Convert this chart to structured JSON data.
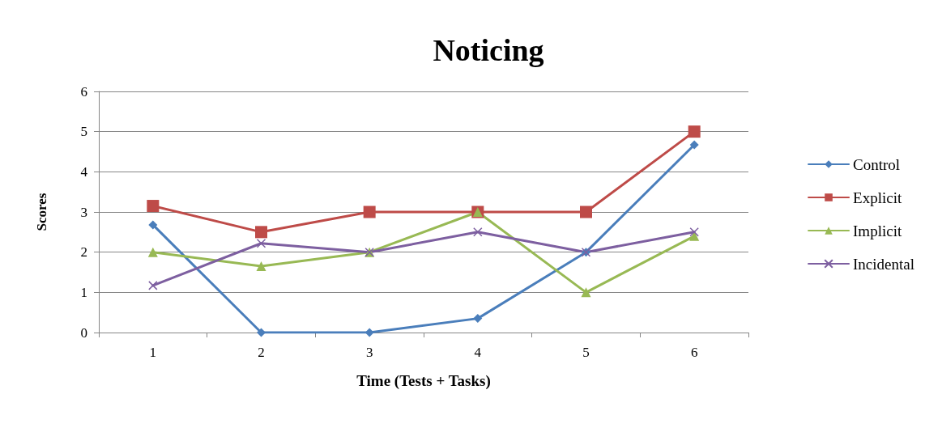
{
  "chart_data": {
    "type": "line",
    "title": "Noticing",
    "xlabel": "Time (Tests + Tasks)",
    "ylabel": "Scores",
    "categories": [
      "1",
      "2",
      "3",
      "4",
      "5",
      "6"
    ],
    "series": [
      {
        "name": "Control",
        "color": "#4a7ebb",
        "marker": "diamond",
        "values": [
          2.68,
          0,
          0,
          0.35,
          2,
          4.67
        ]
      },
      {
        "name": "Explicit",
        "color": "#be4b48",
        "marker": "square",
        "values": [
          3.15,
          2.5,
          3,
          3,
          3,
          5
        ]
      },
      {
        "name": "Implicit",
        "color": "#98b954",
        "marker": "triangle",
        "values": [
          2,
          1.65,
          2,
          3,
          1,
          2.4
        ]
      },
      {
        "name": "Incidental",
        "color": "#7d5fa0",
        "marker": "cross",
        "values": [
          1.17,
          2.22,
          2,
          2.5,
          2,
          2.5
        ]
      }
    ],
    "ylim": [
      0,
      6
    ],
    "yticks": [
      0,
      1,
      2,
      3,
      4,
      5,
      6
    ],
    "grid": "y",
    "legend": "right",
    "line_style": "solid"
  }
}
